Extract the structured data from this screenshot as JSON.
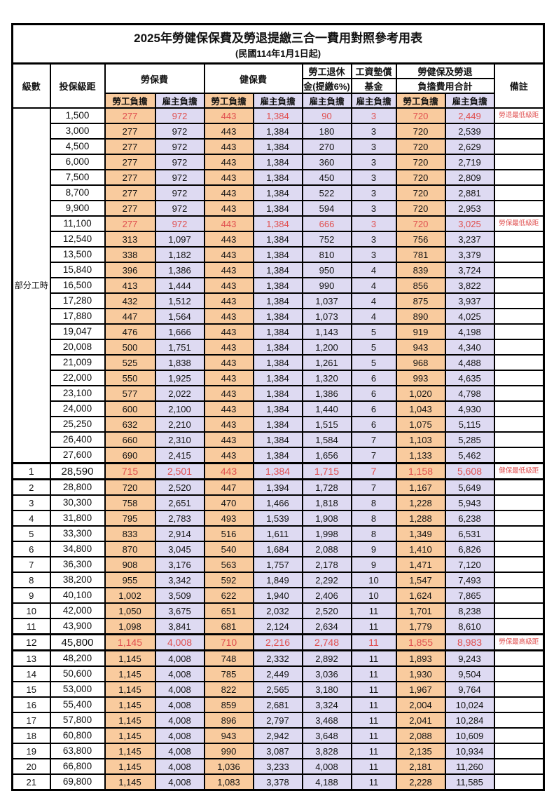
{
  "title": "2025年勞健保保費及勞退提繳三合一費用對照參考用表",
  "subtitle": "(民國114年1月1日起)",
  "header": {
    "level": "級數",
    "salary_bracket": "投保級距",
    "labor_insurance": "勞保費",
    "health_insurance": "健保費",
    "pension_line1": "勞工退休",
    "pension_line2": "金(提繳6%)",
    "wage_fund_line1": "工資墊償",
    "wage_fund_line2": "基金",
    "total_line1": "勞健保及勞退",
    "total_line2": "負擔費用合計",
    "remark": "備註",
    "employee_burden": "勞工負擔",
    "employer_burden": "雇主負擔"
  },
  "part_time_label": "部分工時",
  "part_time_row_count": 23,
  "colors": {
    "employee_bg": "#F9CB9E",
    "employer_bg": "#DEDAF2",
    "highlight_text": "#E04F4F",
    "border": "#000000"
  },
  "row_fields": [
    "level",
    "salary_bracket",
    "labor_employee",
    "labor_employer",
    "health_employee",
    "health_employer",
    "pension_employer",
    "wage_fund_employer",
    "total_employee",
    "total_employer",
    "remark",
    "is_red",
    "is_emphasized"
  ],
  "rows": [
    [
      "",
      "1,500",
      "277",
      "972",
      "443",
      "1,384",
      "90",
      "3",
      "720",
      "2,449",
      "勞退最低級距",
      1,
      0
    ],
    [
      "",
      "3,000",
      "277",
      "972",
      "443",
      "1,384",
      "180",
      "3",
      "720",
      "2,539",
      "",
      0,
      0
    ],
    [
      "",
      "4,500",
      "277",
      "972",
      "443",
      "1,384",
      "270",
      "3",
      "720",
      "2,629",
      "",
      0,
      0
    ],
    [
      "",
      "6,000",
      "277",
      "972",
      "443",
      "1,384",
      "360",
      "3",
      "720",
      "2,719",
      "",
      0,
      0
    ],
    [
      "",
      "7,500",
      "277",
      "972",
      "443",
      "1,384",
      "450",
      "3",
      "720",
      "2,809",
      "",
      0,
      0
    ],
    [
      "",
      "8,700",
      "277",
      "972",
      "443",
      "1,384",
      "522",
      "3",
      "720",
      "2,881",
      "",
      0,
      0
    ],
    [
      "",
      "9,900",
      "277",
      "972",
      "443",
      "1,384",
      "594",
      "3",
      "720",
      "2,953",
      "",
      0,
      0
    ],
    [
      "",
      "11,100",
      "277",
      "972",
      "443",
      "1,384",
      "666",
      "3",
      "720",
      "3,025",
      "勞保最低級距",
      1,
      0
    ],
    [
      "",
      "12,540",
      "313",
      "1,097",
      "443",
      "1,384",
      "752",
      "3",
      "756",
      "3,237",
      "",
      0,
      0
    ],
    [
      "",
      "13,500",
      "338",
      "1,182",
      "443",
      "1,384",
      "810",
      "3",
      "781",
      "3,379",
      "",
      0,
      0
    ],
    [
      "",
      "15,840",
      "396",
      "1,386",
      "443",
      "1,384",
      "950",
      "4",
      "839",
      "3,724",
      "",
      0,
      0
    ],
    [
      "",
      "16,500",
      "413",
      "1,444",
      "443",
      "1,384",
      "990",
      "4",
      "856",
      "3,822",
      "",
      0,
      0
    ],
    [
      "",
      "17,280",
      "432",
      "1,512",
      "443",
      "1,384",
      "1,037",
      "4",
      "875",
      "3,937",
      "",
      0,
      0
    ],
    [
      "",
      "17,880",
      "447",
      "1,564",
      "443",
      "1,384",
      "1,073",
      "4",
      "890",
      "4,025",
      "",
      0,
      0
    ],
    [
      "",
      "19,047",
      "476",
      "1,666",
      "443",
      "1,384",
      "1,143",
      "5",
      "919",
      "4,198",
      "",
      0,
      0
    ],
    [
      "",
      "20,008",
      "500",
      "1,751",
      "443",
      "1,384",
      "1,200",
      "5",
      "943",
      "4,340",
      "",
      0,
      0
    ],
    [
      "",
      "21,009",
      "525",
      "1,838",
      "443",
      "1,384",
      "1,261",
      "5",
      "968",
      "4,488",
      "",
      0,
      0
    ],
    [
      "",
      "22,000",
      "550",
      "1,925",
      "443",
      "1,384",
      "1,320",
      "6",
      "993",
      "4,635",
      "",
      0,
      0
    ],
    [
      "",
      "23,100",
      "577",
      "2,022",
      "443",
      "1,384",
      "1,386",
      "6",
      "1,020",
      "4,798",
      "",
      0,
      0
    ],
    [
      "",
      "24,000",
      "600",
      "2,100",
      "443",
      "1,384",
      "1,440",
      "6",
      "1,043",
      "4,930",
      "",
      0,
      0
    ],
    [
      "",
      "25,250",
      "632",
      "2,210",
      "443",
      "1,384",
      "1,515",
      "6",
      "1,075",
      "5,115",
      "",
      0,
      0
    ],
    [
      "",
      "26,400",
      "660",
      "2,310",
      "443",
      "1,384",
      "1,584",
      "7",
      "1,103",
      "5,285",
      "",
      0,
      0
    ],
    [
      "",
      "27,600",
      "690",
      "2,415",
      "443",
      "1,384",
      "1,656",
      "7",
      "1,133",
      "5,462",
      "",
      0,
      0
    ],
    [
      "1",
      "28,590",
      "715",
      "2,501",
      "443",
      "1,384",
      "1,715",
      "7",
      "1,158",
      "5,608",
      "健保最低級距",
      1,
      1
    ],
    [
      "2",
      "28,800",
      "720",
      "2,520",
      "447",
      "1,394",
      "1,728",
      "7",
      "1,167",
      "5,649",
      "",
      0,
      0
    ],
    [
      "3",
      "30,300",
      "758",
      "2,651",
      "470",
      "1,466",
      "1,818",
      "8",
      "1,228",
      "5,943",
      "",
      0,
      0
    ],
    [
      "4",
      "31,800",
      "795",
      "2,783",
      "493",
      "1,539",
      "1,908",
      "8",
      "1,288",
      "6,238",
      "",
      0,
      0
    ],
    [
      "5",
      "33,300",
      "833",
      "2,914",
      "516",
      "1,611",
      "1,998",
      "8",
      "1,349",
      "6,531",
      "",
      0,
      0
    ],
    [
      "6",
      "34,800",
      "870",
      "3,045",
      "540",
      "1,684",
      "2,088",
      "9",
      "1,410",
      "6,826",
      "",
      0,
      0
    ],
    [
      "7",
      "36,300",
      "908",
      "3,176",
      "563",
      "1,757",
      "2,178",
      "9",
      "1,471",
      "7,120",
      "",
      0,
      0
    ],
    [
      "8",
      "38,200",
      "955",
      "3,342",
      "592",
      "1,849",
      "2,292",
      "10",
      "1,547",
      "7,493",
      "",
      0,
      0
    ],
    [
      "9",
      "40,100",
      "1,002",
      "3,509",
      "622",
      "1,940",
      "2,406",
      "10",
      "1,624",
      "7,865",
      "",
      0,
      0
    ],
    [
      "10",
      "42,000",
      "1,050",
      "3,675",
      "651",
      "2,032",
      "2,520",
      "11",
      "1,701",
      "8,238",
      "",
      0,
      0
    ],
    [
      "11",
      "43,900",
      "1,098",
      "3,841",
      "681",
      "2,124",
      "2,634",
      "11",
      "1,779",
      "8,610",
      "",
      0,
      0
    ],
    [
      "12",
      "45,800",
      "1,145",
      "4,008",
      "710",
      "2,216",
      "2,748",
      "11",
      "1,855",
      "8,983",
      "勞保最高級距",
      1,
      1
    ],
    [
      "13",
      "48,200",
      "1,145",
      "4,008",
      "748",
      "2,332",
      "2,892",
      "11",
      "1,893",
      "9,243",
      "",
      0,
      0
    ],
    [
      "14",
      "50,600",
      "1,145",
      "4,008",
      "785",
      "2,449",
      "3,036",
      "11",
      "1,930",
      "9,504",
      "",
      0,
      0
    ],
    [
      "15",
      "53,000",
      "1,145",
      "4,008",
      "822",
      "2,565",
      "3,180",
      "11",
      "1,967",
      "9,764",
      "",
      0,
      0
    ],
    [
      "16",
      "55,400",
      "1,145",
      "4,008",
      "859",
      "2,681",
      "3,324",
      "11",
      "2,004",
      "10,024",
      "",
      0,
      0
    ],
    [
      "17",
      "57,800",
      "1,145",
      "4,008",
      "896",
      "2,797",
      "3,468",
      "11",
      "2,041",
      "10,284",
      "",
      0,
      0
    ],
    [
      "18",
      "60,800",
      "1,145",
      "4,008",
      "943",
      "2,942",
      "3,648",
      "11",
      "2,088",
      "10,609",
      "",
      0,
      0
    ],
    [
      "19",
      "63,800",
      "1,145",
      "4,008",
      "990",
      "3,087",
      "3,828",
      "11",
      "2,135",
      "10,934",
      "",
      0,
      0
    ],
    [
      "20",
      "66,800",
      "1,145",
      "4,008",
      "1,036",
      "3,233",
      "4,008",
      "11",
      "2,181",
      "11,260",
      "",
      0,
      0
    ],
    [
      "21",
      "69,800",
      "1,145",
      "4,008",
      "1,083",
      "3,378",
      "4,188",
      "11",
      "2,228",
      "11,585",
      "",
      0,
      0
    ]
  ]
}
